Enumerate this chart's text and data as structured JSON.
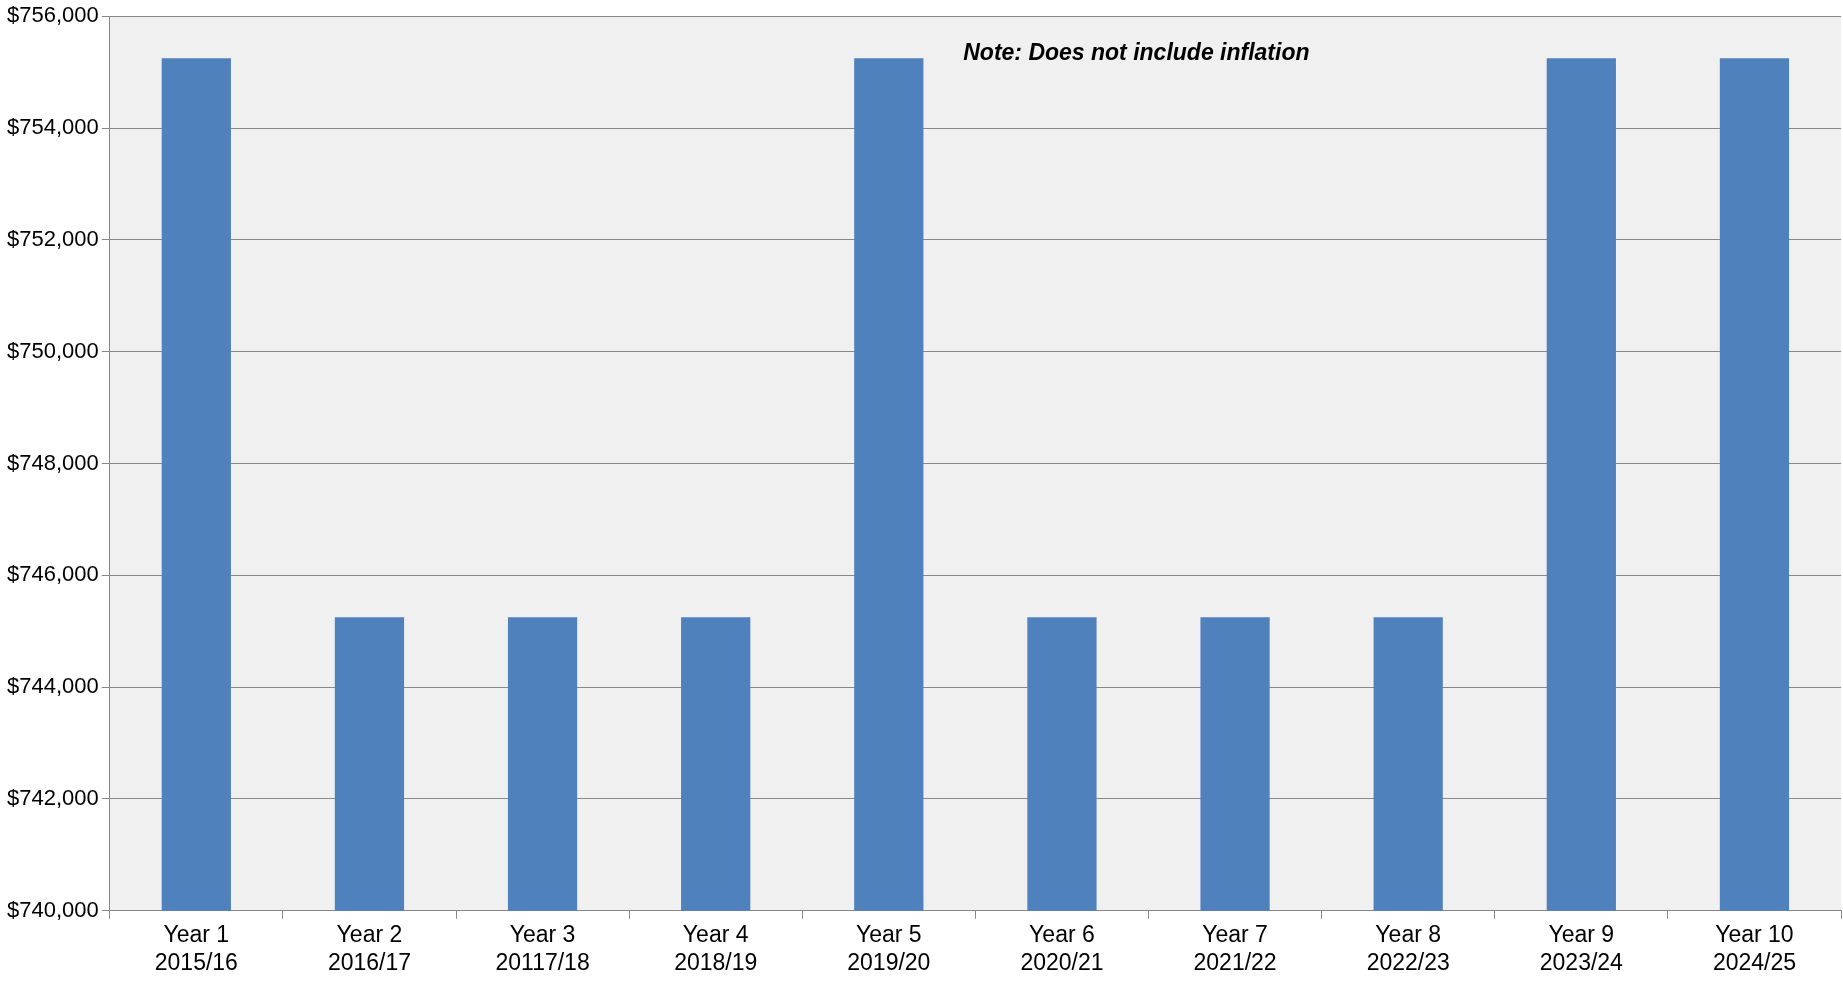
{
  "chart_data": {
    "type": "bar",
    "categories": [
      "Year 1\n2015/16",
      "Year 2\n2016/17",
      "Year 3\n20117/18",
      "Year 4\n2018/19",
      "Year 5\n2019/20",
      "Year 6\n2020/21",
      "Year 7\n2021/22",
      "Year 8\n2022/23",
      "Year 9\n2023/24",
      "Year 10\n2024/25"
    ],
    "values": [
      755250,
      745250,
      745250,
      745250,
      755250,
      745250,
      745250,
      745250,
      755250,
      755250
    ],
    "color": "#4f81bd",
    "ylim": [
      740000,
      756000
    ],
    "yticks": [
      {
        "value": 740000,
        "label": "$740,000"
      },
      {
        "value": 742000,
        "label": "$742,000"
      },
      {
        "value": 744000,
        "label": "$744,000"
      },
      {
        "value": 746000,
        "label": "$746,000"
      },
      {
        "value": 748000,
        "label": "$748,000"
      },
      {
        "value": 750000,
        "label": "$750,000"
      },
      {
        "value": 752000,
        "label": "$752,000"
      },
      {
        "value": 754000,
        "label": "$754,000"
      },
      {
        "value": 756000,
        "label": "$756,000"
      }
    ],
    "grid": "y",
    "legend": false,
    "annotations": [
      "Note: Does not include inflation"
    ]
  }
}
